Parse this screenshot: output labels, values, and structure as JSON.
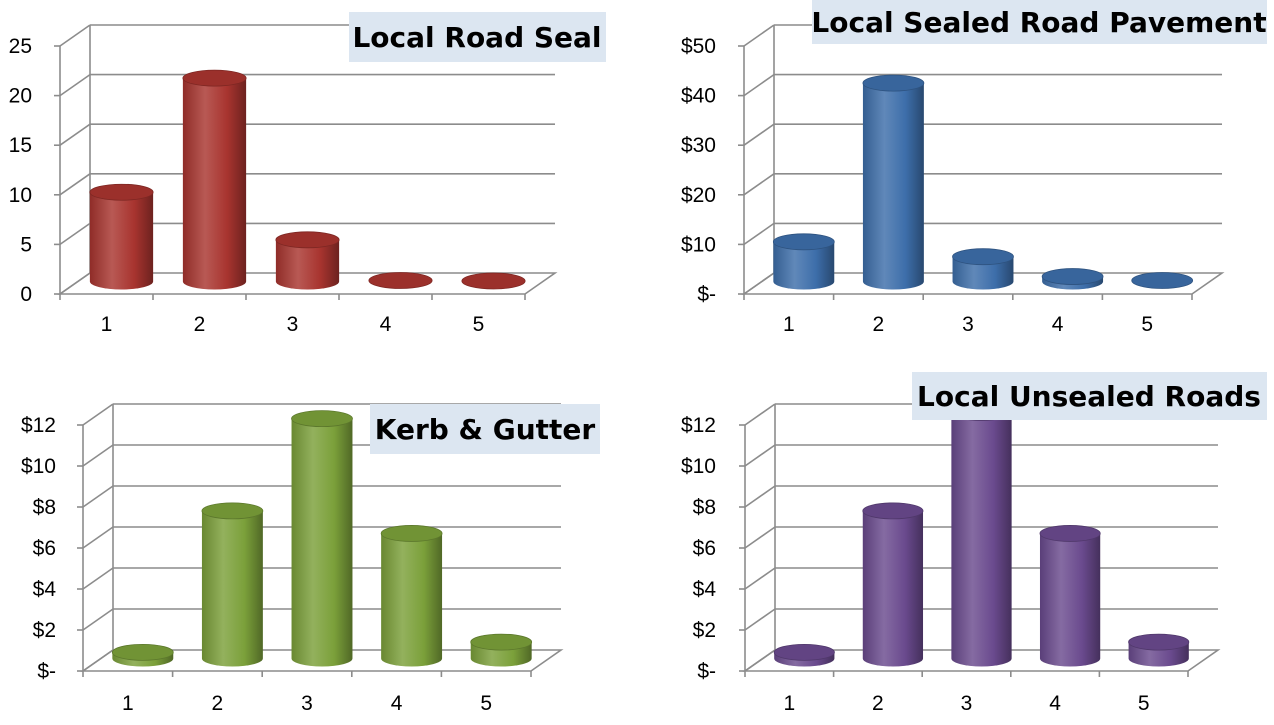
{
  "chart_data": [
    {
      "type": "bar",
      "style": "3d-cylinder",
      "title": "Local Road Seal",
      "categories": [
        "1",
        "2",
        "3",
        "4",
        "5"
      ],
      "values": [
        9,
        20.5,
        4.2,
        0.1,
        0.05
      ],
      "ylim": [
        0,
        25
      ],
      "yticks": [
        "0",
        "5",
        "10",
        "15",
        "20",
        "25"
      ],
      "color": "#a8342f",
      "grid": true
    },
    {
      "type": "bar",
      "style": "3d-cylinder",
      "title": "Local Sealed Road Pavement",
      "categories": [
        "1",
        "2",
        "3",
        "4",
        "5"
      ],
      "values": [
        8,
        40,
        5,
        1,
        0.2
      ],
      "ylim": [
        0,
        50
      ],
      "yticks": [
        "$-",
        "$10",
        "$20",
        "$30",
        "$40",
        "$50"
      ],
      "color": "#3d6eaa",
      "grid": true
    },
    {
      "type": "bar",
      "style": "3d-cylinder",
      "title": "Kerb & Gutter",
      "categories": [
        "1",
        "2",
        "3",
        "4",
        "5"
      ],
      "values": [
        0.3,
        7.2,
        11.7,
        6.1,
        0.8
      ],
      "ylim": [
        0,
        12
      ],
      "yticks": [
        "$-",
        "$2",
        "$4",
        "$6",
        "$8",
        "$10",
        "$12"
      ],
      "color": "#7ba03a",
      "grid": true
    },
    {
      "type": "bar",
      "style": "3d-cylinder",
      "title": "Local Unsealed Roads",
      "categories": [
        "1",
        "2",
        "3",
        "4",
        "5"
      ],
      "values": [
        0.3,
        7.2,
        12,
        6.1,
        0.8
      ],
      "ylim": [
        0,
        12
      ],
      "yticks": [
        "$-",
        "$2",
        "$4",
        "$6",
        "$8",
        "$10",
        "$12"
      ],
      "color": "#6a4a8e",
      "grid": true
    }
  ]
}
